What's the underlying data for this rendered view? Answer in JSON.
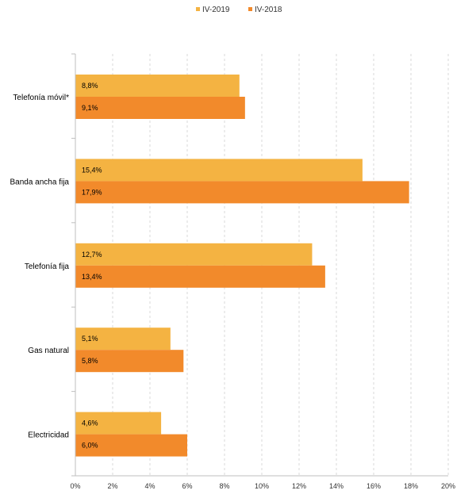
{
  "chart_data": {
    "type": "bar",
    "orientation": "horizontal",
    "categories": [
      "Telefonía móvil*",
      "Banda ancha fija",
      "Telefonía fija",
      "Gas natural",
      "Electricidad"
    ],
    "series": [
      {
        "name": "IV-2019",
        "color": "#f4b342",
        "values": [
          8.8,
          15.4,
          12.7,
          5.1,
          4.6
        ],
        "labels": [
          "8,8%",
          "15,4%",
          "12,7%",
          "5,1%",
          "4,6%"
        ]
      },
      {
        "name": "IV-2018",
        "color": "#f28a2b",
        "values": [
          9.1,
          17.9,
          13.4,
          5.8,
          6.0
        ],
        "labels": [
          "9,1%",
          "17,9%",
          "13,4%",
          "5,8%",
          "6,0%"
        ]
      }
    ],
    "xlim": [
      0,
      20
    ],
    "xticks": [
      0,
      2,
      4,
      6,
      8,
      10,
      12,
      14,
      16,
      18,
      20
    ],
    "xtick_labels": [
      "0%",
      "2%",
      "4%",
      "6%",
      "8%",
      "10%",
      "12%",
      "14%",
      "16%",
      "18%",
      "20%"
    ],
    "grid": true,
    "legend_position": "top-center"
  }
}
